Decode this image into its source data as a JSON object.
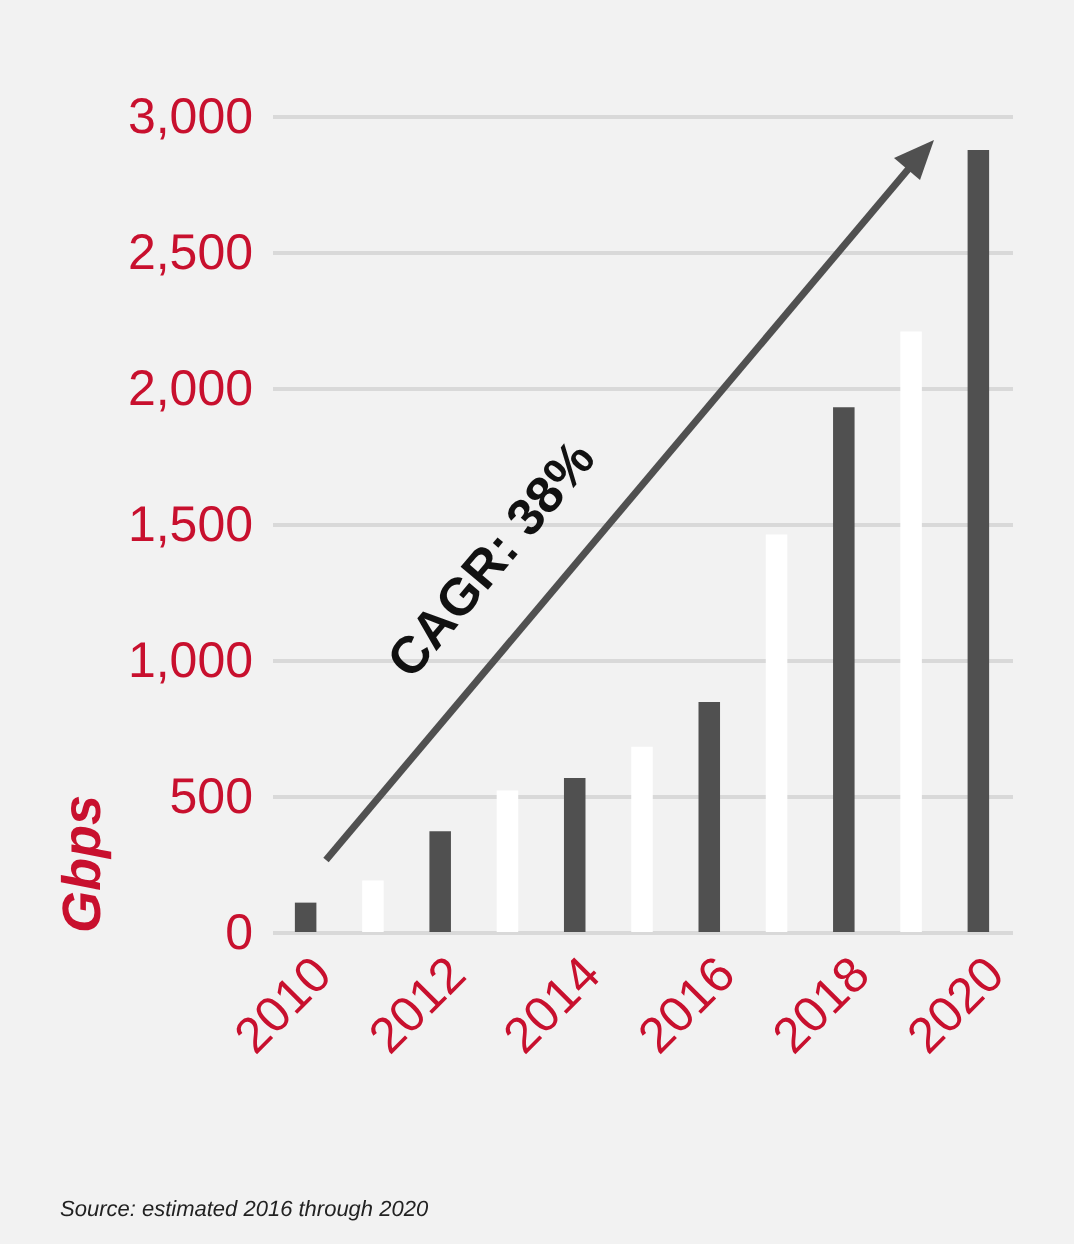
{
  "chart_data": {
    "type": "bar",
    "categories": [
      "2010",
      null,
      "2012",
      null,
      "2014",
      null,
      "2016",
      null,
      "2018",
      null,
      "2020"
    ],
    "values": [
      108,
      189,
      370,
      520,
      566,
      681,
      846,
      1461,
      1929,
      2208,
      2875
    ],
    "colors": [
      "#505050",
      "#ffffff",
      "#505050",
      "#ffffff",
      "#505050",
      "#ffffff",
      "#505050",
      "#ffffff",
      "#505050",
      "#ffffff",
      "#505050"
    ],
    "ylabel": "Gbps",
    "ylim": [
      0,
      3000
    ],
    "yticks": [
      0,
      500,
      {
        "value": 1000,
        "label": "1,000"
      },
      {
        "value": 1500,
        "label": "1,500"
      },
      {
        "value": 2000,
        "label": "2,000"
      },
      {
        "value": 2500,
        "label": "2,500"
      },
      {
        "value": 3000,
        "label": "3,000"
      }
    ],
    "grid": "y",
    "annotations": [
      "CAGR: 38%",
      "Source: estimated 2016 through 2020"
    ]
  }
}
